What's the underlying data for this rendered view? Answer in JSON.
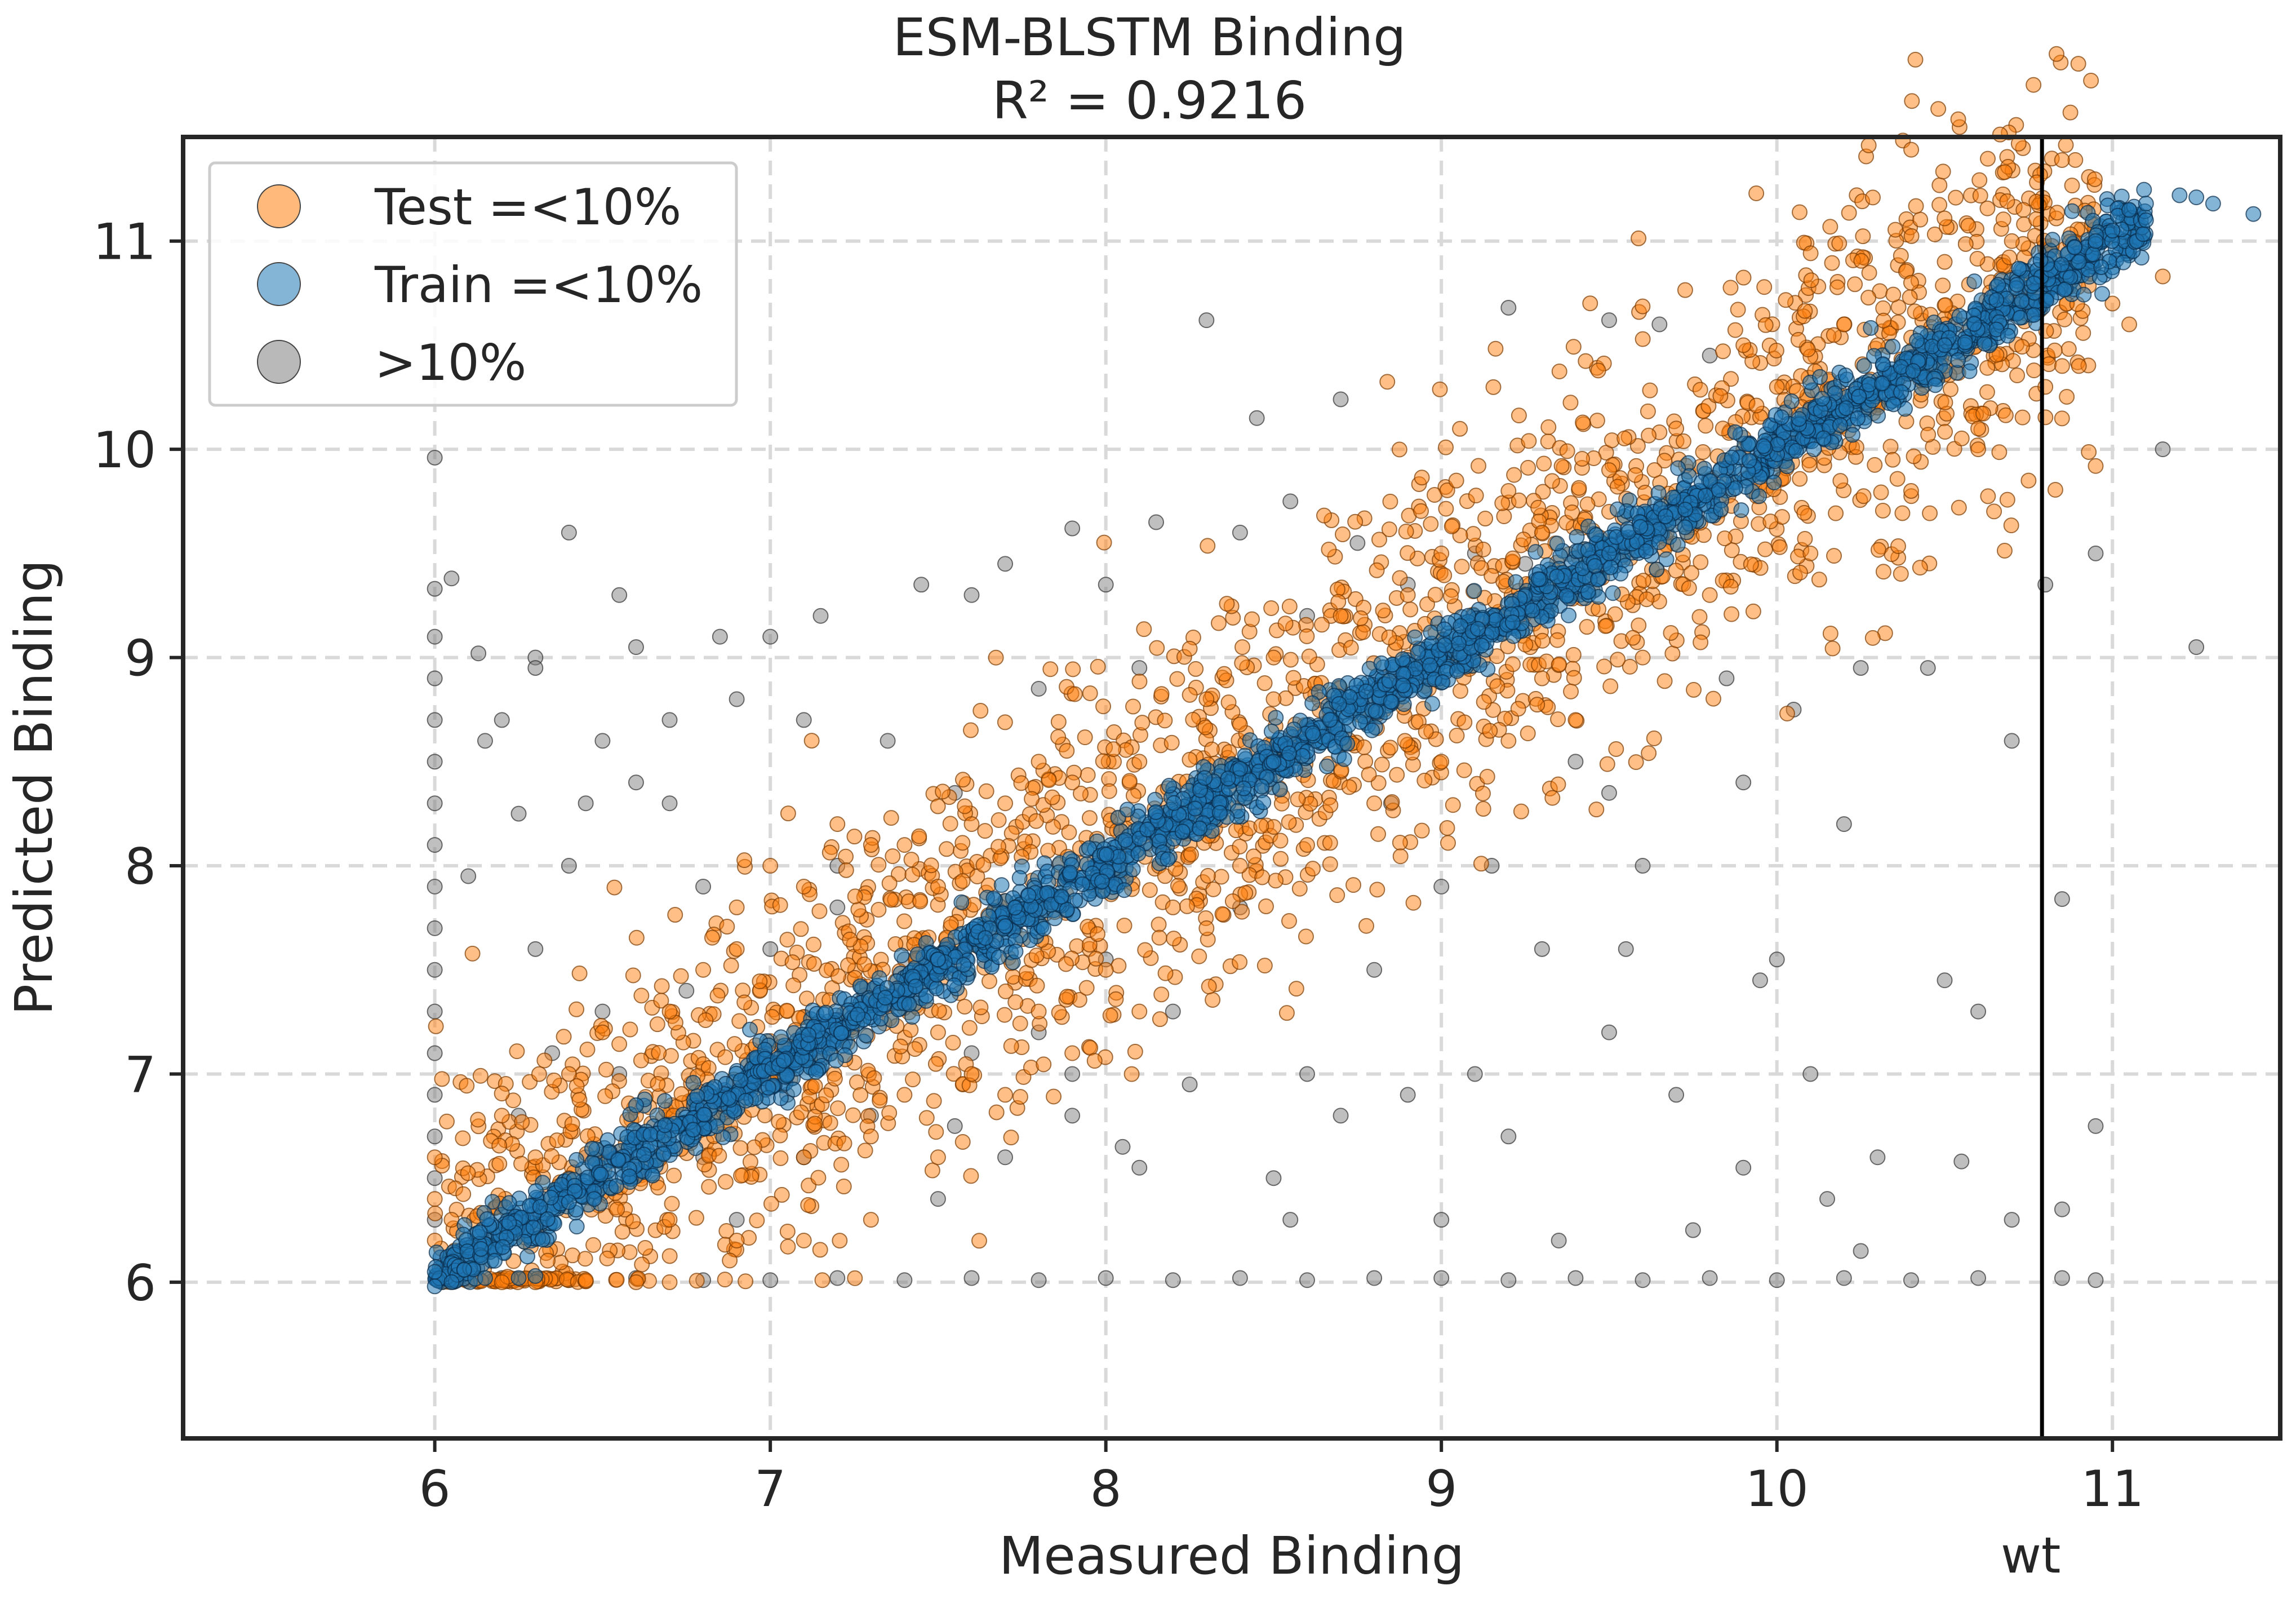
{
  "chart_data": {
    "type": "scatter",
    "title": "ESM-BLSTM Binding",
    "subtitle": "R² = 0.9216",
    "xlabel": "Measured Binding",
    "ylabel": "Predicted Binding",
    "xlim": [
      5.25,
      11.5
    ],
    "ylim": [
      5.25,
      11.5
    ],
    "x_ticks": [
      6,
      7,
      8,
      9,
      10,
      11
    ],
    "y_ticks": [
      6,
      7,
      8,
      9,
      10,
      11
    ],
    "grid": true,
    "legend_position": "top-left",
    "reference_line": {
      "x": 10.79,
      "label": "wt",
      "color": "#000000"
    },
    "legend": [
      {
        "label": "Test =<10%",
        "color": "#ff7f0e"
      },
      {
        "label": "Train =<10%",
        "color": "#1f77b4"
      },
      {
        "label": ">10%",
        "color": "#808080"
      }
    ],
    "series": [
      {
        "name": ">10%",
        "color": "#808080",
        "points": [
          [
            6.0,
            9.96
          ],
          [
            6.0,
            9.33
          ],
          [
            6.0,
            9.1
          ],
          [
            6.0,
            8.9
          ],
          [
            6.0,
            8.7
          ],
          [
            6.0,
            8.5
          ],
          [
            6.0,
            8.3
          ],
          [
            6.0,
            8.1
          ],
          [
            6.0,
            7.9
          ],
          [
            6.0,
            7.7
          ],
          [
            6.0,
            7.5
          ],
          [
            6.0,
            7.3
          ],
          [
            6.0,
            7.1
          ],
          [
            6.0,
            6.9
          ],
          [
            6.0,
            6.7
          ],
          [
            6.0,
            6.5
          ],
          [
            6.0,
            6.3
          ],
          [
            6.05,
            9.38
          ],
          [
            6.13,
            9.02
          ],
          [
            6.4,
            9.6
          ],
          [
            6.3,
            9.0
          ],
          [
            6.2,
            8.7
          ],
          [
            6.5,
            8.6
          ],
          [
            6.6,
            8.4
          ],
          [
            6.9,
            8.8
          ],
          [
            7.1,
            8.7
          ],
          [
            6.4,
            8.0
          ],
          [
            6.7,
            8.3
          ],
          [
            6.3,
            7.6
          ],
          [
            6.5,
            7.3
          ],
          [
            6.8,
            7.9
          ],
          [
            7.2,
            8.0
          ],
          [
            6.6,
            9.05
          ],
          [
            6.85,
            9.1
          ],
          [
            7.0,
            9.1
          ],
          [
            7.15,
            9.2
          ],
          [
            7.45,
            9.35
          ],
          [
            7.6,
            9.3
          ],
          [
            7.7,
            9.45
          ],
          [
            7.9,
            9.62
          ],
          [
            8.0,
            9.35
          ],
          [
            8.15,
            9.65
          ],
          [
            8.4,
            9.6
          ],
          [
            8.55,
            9.75
          ],
          [
            8.75,
            9.55
          ],
          [
            8.9,
            9.35
          ],
          [
            9.1,
            9.5
          ],
          [
            9.25,
            9.45
          ],
          [
            8.3,
            10.62
          ],
          [
            9.2,
            10.68
          ],
          [
            9.5,
            10.62
          ],
          [
            9.65,
            10.6
          ],
          [
            8.7,
            10.24
          ],
          [
            8.45,
            10.15
          ],
          [
            9.8,
            10.45
          ],
          [
            11.15,
            10.0
          ],
          [
            10.95,
            9.5
          ],
          [
            10.8,
            9.35
          ],
          [
            11.25,
            9.05
          ],
          [
            10.45,
            8.95
          ],
          [
            10.7,
            8.6
          ],
          [
            10.85,
            7.84
          ],
          [
            10.0,
            7.55
          ],
          [
            10.5,
            7.45
          ],
          [
            10.6,
            7.3
          ],
          [
            9.9,
            6.55
          ],
          [
            10.3,
            6.6
          ],
          [
            10.55,
            6.58
          ],
          [
            10.15,
            6.4
          ],
          [
            10.85,
            6.35
          ],
          [
            10.95,
            6.75
          ],
          [
            9.5,
            7.2
          ],
          [
            9.1,
            7.0
          ],
          [
            8.9,
            6.9
          ],
          [
            8.5,
            6.5
          ],
          [
            8.1,
            6.55
          ],
          [
            7.9,
            6.8
          ],
          [
            7.7,
            6.6
          ],
          [
            7.5,
            6.4
          ],
          [
            7.3,
            6.8
          ],
          [
            7.1,
            6.6
          ],
          [
            6.9,
            6.3
          ],
          [
            7.3,
            7.4
          ],
          [
            7.0,
            7.6
          ],
          [
            7.8,
            7.2
          ],
          [
            8.2,
            7.3
          ],
          [
            8.4,
            7.8
          ],
          [
            8.8,
            7.5
          ],
          [
            9.0,
            7.9
          ],
          [
            9.3,
            7.6
          ],
          [
            9.6,
            8.0
          ],
          [
            9.9,
            8.4
          ],
          [
            10.2,
            8.2
          ],
          [
            9.4,
            8.5
          ],
          [
            8.6,
            7.0
          ],
          [
            8.7,
            6.8
          ],
          [
            9.2,
            6.7
          ],
          [
            9.7,
            6.9
          ],
          [
            10.1,
            7.0
          ],
          [
            6.3,
            8.95
          ],
          [
            6.15,
            8.6
          ],
          [
            6.25,
            8.25
          ],
          [
            6.45,
            8.3
          ],
          [
            6.1,
            7.95
          ],
          [
            6.35,
            7.1
          ],
          [
            6.55,
            7.0
          ],
          [
            6.25,
            6.8
          ],
          [
            6.45,
            6.6
          ],
          [
            6.8,
            6.6
          ],
          [
            7.05,
            6.9
          ],
          [
            7.6,
            7.1
          ],
          [
            7.9,
            7.0
          ],
          [
            8.25,
            6.95
          ],
          [
            6.05,
            6.02
          ],
          [
            6.2,
            6.02
          ],
          [
            6.4,
            6.01
          ],
          [
            6.6,
            6.02
          ],
          [
            6.8,
            6.01
          ],
          [
            7.0,
            6.01
          ],
          [
            7.2,
            6.02
          ],
          [
            7.4,
            6.01
          ],
          [
            7.6,
            6.02
          ],
          [
            7.8,
            6.01
          ],
          [
            8.0,
            6.02
          ],
          [
            8.2,
            6.01
          ],
          [
            8.4,
            6.02
          ],
          [
            8.6,
            6.01
          ],
          [
            8.8,
            6.02
          ],
          [
            9.0,
            6.02
          ],
          [
            9.2,
            6.01
          ],
          [
            9.4,
            6.02
          ],
          [
            9.6,
            6.01
          ],
          [
            9.8,
            6.02
          ],
          [
            10.0,
            6.01
          ],
          [
            10.2,
            6.02
          ],
          [
            10.4,
            6.01
          ],
          [
            10.6,
            6.02
          ],
          [
            10.85,
            6.02
          ],
          [
            10.95,
            6.01
          ],
          [
            8.15,
            8.2
          ],
          [
            8.35,
            8.45
          ],
          [
            8.0,
            7.55
          ],
          [
            7.4,
            7.55
          ],
          [
            7.2,
            7.8
          ],
          [
            6.75,
            7.4
          ],
          [
            6.95,
            7.05
          ],
          [
            7.55,
            6.75
          ],
          [
            8.05,
            6.65
          ],
          [
            8.55,
            6.3
          ],
          [
            9.0,
            6.3
          ],
          [
            9.35,
            6.2
          ],
          [
            9.75,
            6.25
          ],
          [
            10.25,
            6.15
          ],
          [
            10.7,
            6.3
          ],
          [
            9.85,
            8.9
          ],
          [
            10.05,
            8.75
          ],
          [
            10.25,
            8.95
          ],
          [
            9.5,
            8.35
          ],
          [
            9.15,
            8.0
          ],
          [
            8.85,
            8.3
          ],
          [
            9.55,
            7.6
          ],
          [
            9.95,
            7.45
          ],
          [
            6.55,
            9.3
          ],
          [
            6.7,
            8.7
          ],
          [
            7.35,
            8.6
          ],
          [
            7.55,
            8.35
          ],
          [
            7.8,
            8.85
          ],
          [
            8.1,
            8.95
          ],
          [
            8.6,
            9.2
          ]
        ]
      },
      {
        "name": "Test =<10%",
        "color": "#ff7f0e",
        "band": {
          "x_start": 6.0,
          "x_end": 10.95,
          "y_at_start": 6.0,
          "y_at_end": 11.0,
          "width_start": 0.9,
          "width_end": 0.95
        },
        "points": [
          [
            6.0,
            6.6
          ],
          [
            6.0,
            6.4
          ],
          [
            6.0,
            6.2
          ],
          [
            6.05,
            6.3
          ],
          [
            6.2,
            6.0
          ],
          [
            6.3,
            6.0
          ],
          [
            6.45,
            6.01
          ],
          [
            6.6,
            6.0
          ],
          [
            6.7,
            6.0
          ],
          [
            6.4,
            7.0
          ],
          [
            6.5,
            7.2
          ],
          [
            6.6,
            6.8
          ],
          [
            6.8,
            7.5
          ],
          [
            6.9,
            7.6
          ],
          [
            7.0,
            7.1
          ],
          [
            7.1,
            6.6
          ],
          [
            7.3,
            6.7
          ],
          [
            7.4,
            6.9
          ],
          [
            7.5,
            7.2
          ],
          [
            7.6,
            7.0
          ],
          [
            7.0,
            8.0
          ],
          [
            7.2,
            8.2
          ],
          [
            7.4,
            8.1
          ],
          [
            7.6,
            8.2
          ],
          [
            7.8,
            8.5
          ],
          [
            7.8,
            7.3
          ],
          [
            8.0,
            7.5
          ],
          [
            8.2,
            7.8
          ],
          [
            8.4,
            8.0
          ],
          [
            8.5,
            8.8
          ],
          [
            8.7,
            8.8
          ],
          [
            8.9,
            9.3
          ],
          [
            9.0,
            9.5
          ],
          [
            9.2,
            9.8
          ],
          [
            9.0,
            8.5
          ],
          [
            9.2,
            8.6
          ],
          [
            9.4,
            8.7
          ],
          [
            9.5,
            9.9
          ],
          [
            9.7,
            10.1
          ],
          [
            9.9,
            10.5
          ],
          [
            10.0,
            10.3
          ],
          [
            10.2,
            10.6
          ],
          [
            10.4,
            10.8
          ],
          [
            10.5,
            10.9
          ],
          [
            10.7,
            11.0
          ],
          [
            10.4,
            9.8
          ],
          [
            10.6,
            10.0
          ],
          [
            10.8,
            10.3
          ],
          [
            10.9,
            10.4
          ],
          [
            11.0,
            10.7
          ],
          [
            11.15,
            10.83
          ],
          [
            11.05,
            10.6
          ],
          [
            10.75,
            9.85
          ],
          [
            10.6,
            10.1
          ],
          [
            10.85,
            10.4
          ],
          [
            10.95,
            9.92
          ],
          [
            10.5,
            10.4
          ],
          [
            10.3,
            10.2
          ],
          [
            10.1,
            9.5
          ],
          [
            9.8,
            9.3
          ],
          [
            9.6,
            9.0
          ],
          [
            9.3,
            8.9
          ],
          [
            8.8,
            8.3
          ],
          [
            8.6,
            8.1
          ],
          [
            8.3,
            7.7
          ],
          [
            8.1,
            7.3
          ],
          [
            7.9,
            7.1
          ],
          [
            7.7,
            6.9
          ],
          [
            7.5,
            6.6
          ],
          [
            7.3,
            6.3
          ],
          [
            7.1,
            6.2
          ],
          [
            6.9,
            6.2
          ],
          [
            6.7,
            6.3
          ],
          [
            6.5,
            6.5
          ],
          [
            6.3,
            6.6
          ],
          [
            6.2,
            6.8
          ],
          [
            6.4,
            6.5
          ],
          [
            6.7,
            7.3
          ],
          [
            6.9,
            7.8
          ],
          [
            7.1,
            7.9
          ],
          [
            7.3,
            8.1
          ],
          [
            7.5,
            7.9
          ],
          [
            7.7,
            8.3
          ],
          [
            7.9,
            8.4
          ],
          [
            8.1,
            8.5
          ],
          [
            8.3,
            8.8
          ],
          [
            8.5,
            9.0
          ],
          [
            8.7,
            9.2
          ],
          [
            8.9,
            9.0
          ],
          [
            9.1,
            9.1
          ],
          [
            9.3,
            9.6
          ],
          [
            9.5,
            9.7
          ],
          [
            9.7,
            9.8
          ],
          [
            9.9,
            10.0
          ],
          [
            10.1,
            10.2
          ],
          [
            10.3,
            10.5
          ],
          [
            10.5,
            10.6
          ],
          [
            10.7,
            10.7
          ],
          [
            10.9,
            10.9
          ]
        ]
      },
      {
        "name": "Train =<10%",
        "color": "#1f77b4",
        "band": {
          "x_start": 6.0,
          "x_end": 11.1,
          "y_at_start": 6.02,
          "y_at_end": 11.1,
          "width_start": 0.14,
          "width_end": 0.16
        },
        "points": [
          [
            6.0,
            6.05
          ],
          [
            6.0,
            5.98
          ],
          [
            6.05,
            6.0
          ],
          [
            6.15,
            6.02
          ],
          [
            6.25,
            6.02
          ],
          [
            6.3,
            6.03
          ],
          [
            11.05,
            11.15
          ],
          [
            11.1,
            11.18
          ],
          [
            11.2,
            11.22
          ],
          [
            11.25,
            11.21
          ],
          [
            11.3,
            11.18
          ],
          [
            11.42,
            11.13
          ],
          [
            11.1,
            11.1
          ],
          [
            11.0,
            11.05
          ],
          [
            10.95,
            11.0
          ],
          [
            10.9,
            10.9
          ],
          [
            6.6,
            6.85
          ],
          [
            7.5,
            7.55
          ],
          [
            8.5,
            8.5
          ],
          [
            9.5,
            9.5
          ],
          [
            10.5,
            10.5
          ]
        ]
      }
    ]
  }
}
